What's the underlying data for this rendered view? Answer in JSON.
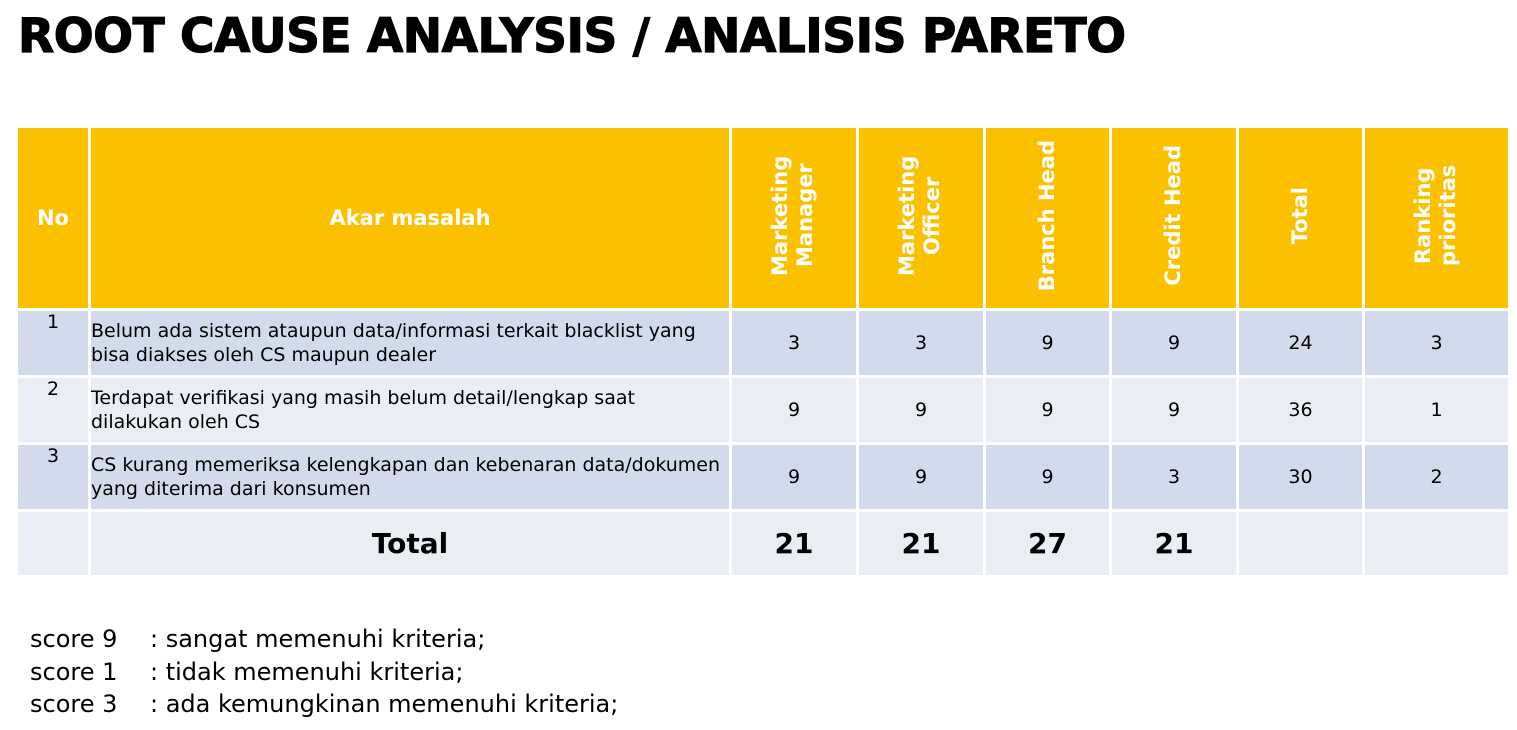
{
  "title": "ROOT CAUSE ANALYSIS / ANALISIS PARETO",
  "header": {
    "no": "No",
    "cause": "Akar masalah",
    "marketing_manager": "Marketing Manager",
    "marketing_officer": "Marketing Officer",
    "branch_head": "Branch Head",
    "credit_head": "Credit Head",
    "total": "Total",
    "ranking": "Ranking prioritas"
  },
  "rows": [
    {
      "no": "1",
      "cause": "Belum ada sistem ataupun data/informasi terkait blacklist yang bisa diakses oleh CS maupun dealer",
      "mm": "3",
      "mo": "3",
      "bh": "9",
      "ch": "9",
      "total": "24",
      "rank": "3"
    },
    {
      "no": "2",
      "cause": "Terdapat verifikasi yang masih belum detail/lengkap saat dilakukan oleh CS",
      "mm": "9",
      "mo": "9",
      "bh": "9",
      "ch": "9",
      "total": "36",
      "rank": "1"
    },
    {
      "no": "3",
      "cause": "CS kurang memeriksa kelengkapan dan kebenaran data/dokumen yang diterima dari konsumen",
      "mm": "9",
      "mo": "9",
      "bh": "9",
      "ch": "3",
      "total": "30",
      "rank": "2"
    }
  ],
  "totals": {
    "label": "Total",
    "mm": "21",
    "mo": "21",
    "bh": "27",
    "ch": "21"
  },
  "legend": [
    {
      "key": "score 9",
      "desc": ": sangat memenuhi kriteria;"
    },
    {
      "key": "score 1",
      "desc": ": tidak memenuhi kriteria;"
    },
    {
      "key": "score 3",
      "desc": ": ada kemungkinan memenuhi kriteria;"
    }
  ],
  "colors": {
    "header_bg": "#fbc000",
    "row_dark": "#d1dbeb",
    "row_light": "#e9edf4"
  }
}
